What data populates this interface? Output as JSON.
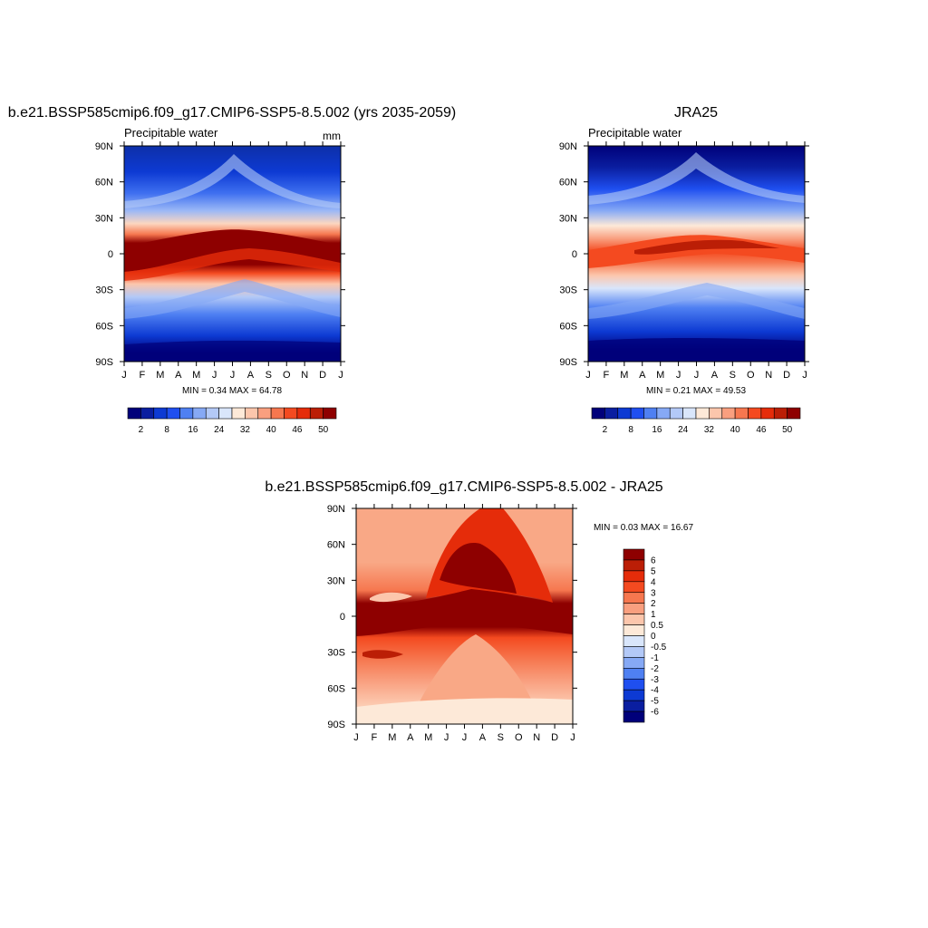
{
  "chart_data": [
    {
      "type": "heatmap",
      "title": "b.e21.BSSP585cmip6.f09_g17.CMIP6-SSP5-8.5.002 (yrs 2035-2059)",
      "subtitle": "Precipitable water",
      "units": "mm",
      "x_tick_labels": [
        "J",
        "F",
        "M",
        "A",
        "M",
        "J",
        "J",
        "A",
        "S",
        "O",
        "N",
        "D",
        "J"
      ],
      "y_tick_labels": [
        "90N",
        "60N",
        "30N",
        "0",
        "30S",
        "60S",
        "90S"
      ],
      "min_max_text": "MIN =   0.34 MAX =  64.78",
      "min": 0.34,
      "max": 64.78,
      "colorbar": {
        "orientation": "horizontal",
        "levels": [
          "2",
          "8",
          "16",
          "24",
          "32",
          "40",
          "46",
          "50"
        ],
        "colors": [
          "#00007a",
          "#0a1ea0",
          "#0d3ad3",
          "#1f4ff0",
          "#4f80f2",
          "#86a9f5",
          "#b3c9f7",
          "#d9e6fb",
          "#fde9d8",
          "#fcc6ac",
          "#f99f7f",
          "#f6774f",
          "#f44a20",
          "#e52c0a",
          "#bb1e06",
          "#8e0000"
        ]
      }
    },
    {
      "type": "heatmap",
      "title": "JRA25",
      "subtitle": "Precipitable water",
      "x_tick_labels": [
        "J",
        "F",
        "M",
        "A",
        "M",
        "J",
        "J",
        "A",
        "S",
        "O",
        "N",
        "D",
        "J"
      ],
      "y_tick_labels": [
        "90N",
        "60N",
        "30N",
        "0",
        "30S",
        "60S",
        "90S"
      ],
      "min_max_text": "MIN =   0.21 MAX =  49.53",
      "min": 0.21,
      "max": 49.53,
      "colorbar": {
        "orientation": "horizontal",
        "levels": [
          "2",
          "8",
          "16",
          "24",
          "32",
          "40",
          "46",
          "50"
        ]
      }
    },
    {
      "type": "heatmap",
      "title": "b.e21.BSSP585cmip6.f09_g17.CMIP6-SSP5-8.5.002 - JRA25",
      "x_tick_labels": [
        "J",
        "F",
        "M",
        "A",
        "M",
        "J",
        "J",
        "A",
        "S",
        "O",
        "N",
        "D",
        "J"
      ],
      "y_tick_labels": [
        "90N",
        "60N",
        "30N",
        "0",
        "30S",
        "60S",
        "90S"
      ],
      "min_max_text": "MIN =   0.03 MAX =  16.67",
      "min": 0.03,
      "max": 16.67,
      "colorbar": {
        "orientation": "vertical",
        "levels": [
          "6",
          "5",
          "4",
          "3",
          "2",
          "1",
          "0.5",
          "0",
          "-0.5",
          "-1",
          "-2",
          "-3",
          "-4",
          "-5",
          "-6"
        ],
        "colors": [
          "#8e0000",
          "#bb1e06",
          "#e52c0a",
          "#f44a20",
          "#f6774f",
          "#f99f7f",
          "#fcc6ac",
          "#fde9d8",
          "#d9e6fb",
          "#b3c9f7",
          "#86a9f5",
          "#4f80f2",
          "#1f4ff0",
          "#0d3ad3",
          "#0a1ea0",
          "#00007a"
        ]
      }
    }
  ]
}
